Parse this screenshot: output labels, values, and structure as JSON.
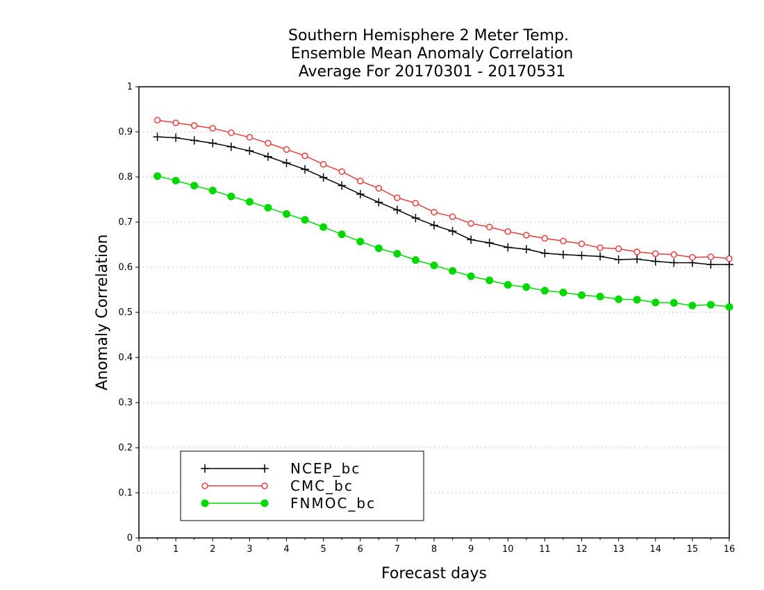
{
  "chart_data": {
    "type": "line",
    "title": [
      "Southern Hemisphere 2 Meter Temp.",
      "Ensemble Mean Anomaly Correlation",
      "Average For 20170301 - 20170531"
    ],
    "xlabel": "Forecast days",
    "ylabel": "Anomaly Correlation",
    "xlim": [
      0,
      16
    ],
    "ylim": [
      0,
      1
    ],
    "x_ticks": [
      "0",
      "1",
      "2",
      "3",
      "4",
      "5",
      "6",
      "7",
      "8",
      "9",
      "10",
      "11",
      "12",
      "13",
      "14",
      "15",
      "16"
    ],
    "y_ticks": [
      "0",
      "0.1",
      "0.2",
      "0.3",
      "0.4",
      "0.5",
      "0.6",
      "0.7",
      "0.8",
      "0.9",
      "1"
    ],
    "grid": true,
    "legend_position": "bottom-left",
    "x": [
      0.5,
      1,
      1.5,
      2,
      2.5,
      3,
      3.5,
      4,
      4.5,
      5,
      5.5,
      6,
      6.5,
      7,
      7.5,
      8,
      8.5,
      9,
      9.5,
      10,
      10.5,
      11,
      11.5,
      12,
      12.5,
      13,
      13.5,
      14,
      14.5,
      15,
      15.5,
      16
    ],
    "series": [
      {
        "name": "NCEP_bc",
        "color": "#000000",
        "marker": "plus",
        "values": [
          0.889,
          0.887,
          0.881,
          0.875,
          0.867,
          0.858,
          0.845,
          0.831,
          0.817,
          0.799,
          0.781,
          0.762,
          0.744,
          0.727,
          0.709,
          0.693,
          0.68,
          0.661,
          0.654,
          0.644,
          0.64,
          0.631,
          0.628,
          0.626,
          0.624,
          0.617,
          0.618,
          0.613,
          0.61,
          0.61,
          0.606,
          0.606
        ]
      },
      {
        "name": "CMC_bc",
        "color": "#e83c3c",
        "marker": "open-circle",
        "values": [
          0.926,
          0.92,
          0.914,
          0.908,
          0.898,
          0.888,
          0.875,
          0.861,
          0.847,
          0.828,
          0.812,
          0.791,
          0.775,
          0.754,
          0.742,
          0.722,
          0.712,
          0.697,
          0.689,
          0.679,
          0.671,
          0.664,
          0.658,
          0.652,
          0.643,
          0.641,
          0.634,
          0.63,
          0.628,
          0.622,
          0.623,
          0.619
        ]
      },
      {
        "name": "FNMOC_bc",
        "color": "#00d800",
        "marker": "filled-circle",
        "values": [
          0.802,
          0.792,
          0.781,
          0.77,
          0.757,
          0.745,
          0.732,
          0.718,
          0.705,
          0.689,
          0.673,
          0.657,
          0.642,
          0.63,
          0.616,
          0.604,
          0.592,
          0.58,
          0.571,
          0.561,
          0.556,
          0.548,
          0.544,
          0.538,
          0.535,
          0.529,
          0.528,
          0.522,
          0.521,
          0.515,
          0.517,
          0.512
        ]
      }
    ]
  }
}
